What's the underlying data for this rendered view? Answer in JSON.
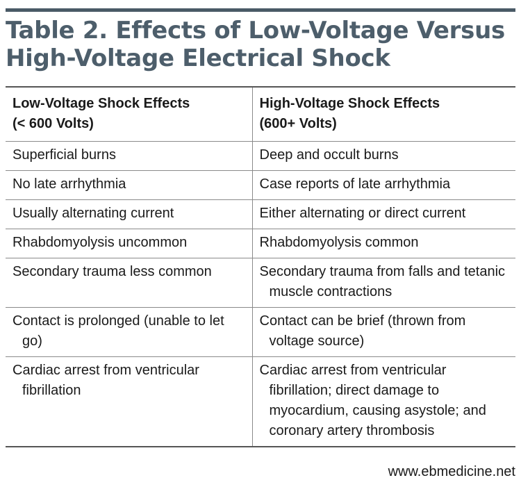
{
  "title": {
    "line1": "Table 2. Effects of Low-Voltage Versus",
    "line2": "High-Voltage Electrical Shock"
  },
  "table": {
    "headers": [
      {
        "line1": "Low-Voltage Shock Effects",
        "line2": "(< 600 Volts)"
      },
      {
        "line1": "High-Voltage Shock Effects",
        "line2": "(600+ Volts)"
      }
    ],
    "rows": [
      [
        "Superficial burns",
        "Deep and occult burns"
      ],
      [
        "No late arrhythmia",
        "Case reports of late arrhythmia"
      ],
      [
        "Usually alternating current",
        "Either alternating or direct current"
      ],
      [
        "Rhabdomyolysis uncommon",
        "Rhabdomyolysis common"
      ],
      [
        "Secondary trauma less common",
        "Secondary trauma from falls and tetanic muscle contractions"
      ],
      [
        "Contact is prolonged (unable to let go)",
        "Contact can be brief (thrown from voltage source)"
      ],
      [
        "Cardiac arrest from ventricular fibrillation",
        "Cardiac arrest from ventricular fibrillation; direct damage to myocardium, causing asystole; and coronary artery thrombosis"
      ]
    ]
  },
  "footer": {
    "url": "www.ebmedicine.net"
  }
}
